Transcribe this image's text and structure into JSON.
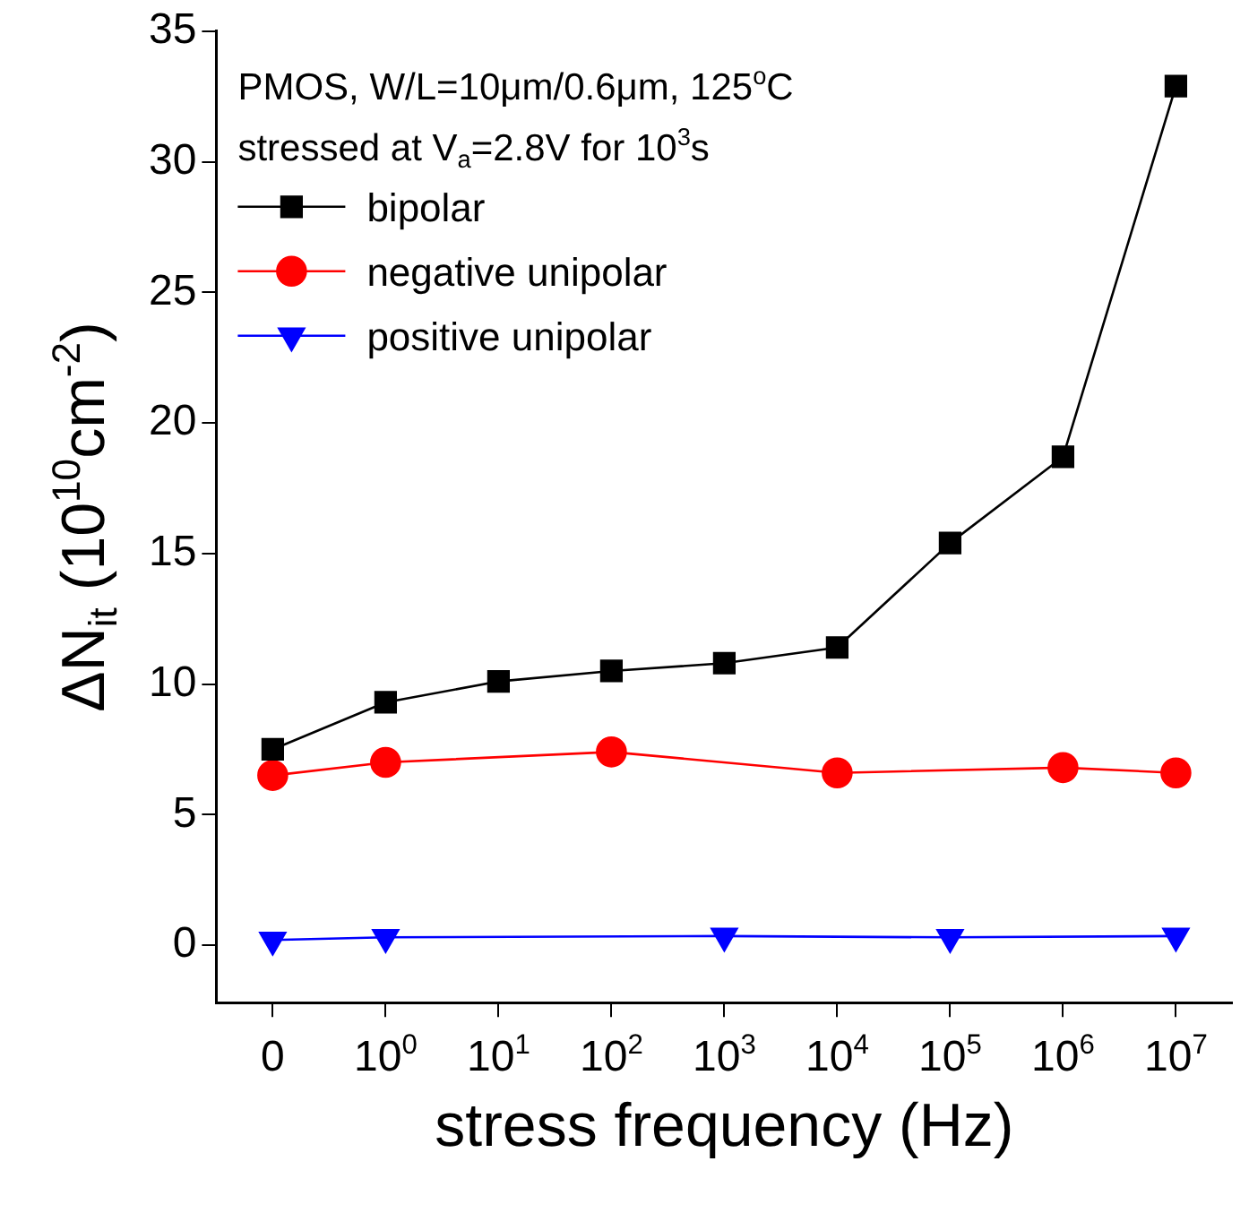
{
  "chart_data": {
    "type": "line",
    "xlabel": "stress frequency (Hz)",
    "ylabel": "ΔN$_{it}$ (10$^{10}$cm$^{-2}$)",
    "categories": [
      "0",
      "10$^{0}$",
      "10$^{1}$",
      "10$^{2}$",
      "10$^{3}$",
      "10$^{4}$",
      "10$^{5}$",
      "10$^{6}$",
      "10$^{7}$"
    ],
    "series": [
      {
        "name": "bipolar",
        "color": "#000000",
        "marker": "square",
        "values": [
          7.5,
          9.3,
          10.1,
          10.5,
          10.8,
          11.4,
          15.4,
          18.7,
          32.9
        ]
      },
      {
        "name": "negative unipolar",
        "color": "#ff0000",
        "marker": "circle",
        "values": [
          6.5,
          7.0,
          null,
          7.4,
          null,
          6.6,
          null,
          6.8,
          6.6
        ]
      },
      {
        "name": "positive unipolar",
        "color": "#0000ff",
        "marker": "triangle",
        "values": [
          0.2,
          0.3,
          null,
          null,
          0.35,
          null,
          0.3,
          null,
          0.35
        ]
      }
    ],
    "ylim": [
      -2.2,
      35
    ],
    "yticks": [
      0,
      5,
      10,
      15,
      20,
      25,
      30,
      35
    ],
    "grid": false,
    "legend": "top left",
    "annotations": [
      "PMOS, W/L=10μm/0.6μm, 125$^{o}$C",
      "stressed at V$_{a}$=2.8V for 10$^{3}$s"
    ]
  }
}
